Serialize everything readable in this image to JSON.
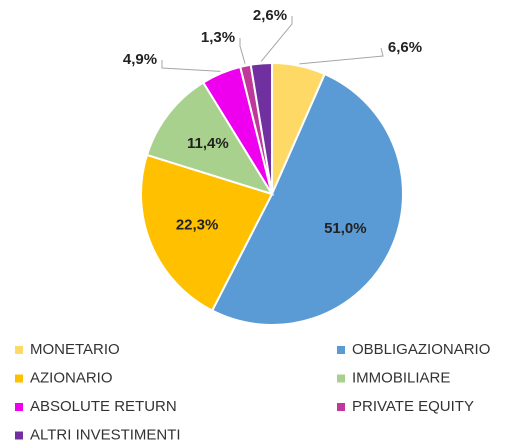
{
  "chart_data": {
    "type": "pie",
    "categories": [
      "MONETARIO",
      "OBBLIGAZIONARIO",
      "AZIONARIO",
      "IMMOBILIARE",
      "ABSOLUTE RETURN",
      "PRIVATE EQUITY",
      "ALTRI INVESTIMENTI"
    ],
    "values": [
      6.6,
      51.0,
      22.3,
      11.4,
      4.9,
      1.3,
      2.6
    ],
    "value_labels": [
      "6,6%",
      "51,0%",
      "22,3%",
      "11,4%",
      "4,9%",
      "1,3%",
      "2,6%"
    ],
    "colors": [
      "#ffd966",
      "#5b9bd5",
      "#ffc000",
      "#a9d18e",
      "#ee00ee",
      "#c0399a",
      "#7030a0"
    ],
    "legend": "bottom"
  }
}
